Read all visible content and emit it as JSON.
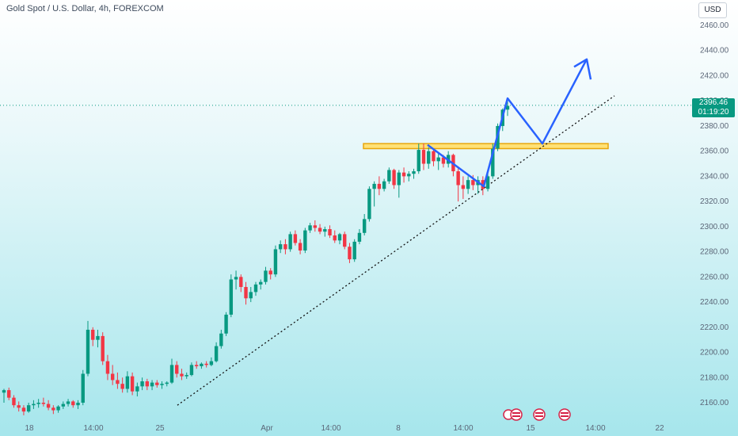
{
  "header": {
    "title": "Gold Spot / U.S. Dollar, 4h, FOREXCOM",
    "currency_button": "USD"
  },
  "price_tag": {
    "price": "2396.46",
    "countdown": "01:19:20"
  },
  "colors": {
    "up": "#089981",
    "down": "#f23645",
    "projection": "#2962ff",
    "zone_fill": "#ffe176",
    "zone_border": "#e8a60c"
  },
  "chart_data": {
    "type": "candlestick",
    "title": "Gold Spot / U.S. Dollar, 4h, FOREXCOM",
    "ylim": [
      2150,
      2470
    ],
    "y_ticks": [
      2160,
      2180,
      2200,
      2220,
      2240,
      2260,
      2280,
      2300,
      2320,
      2340,
      2360,
      2380,
      2400,
      2420,
      2440,
      2460
    ],
    "y_tick_labels": [
      "2160.00",
      "2180.00",
      "2200.00",
      "2220.00",
      "2240.00",
      "2260.00",
      "2280.00",
      "2300.00",
      "2320.00",
      "2340.00",
      "2360.00",
      "2380.00",
      "2400.00",
      "2420.00",
      "2440.00",
      "2460.00"
    ],
    "x_tick_labels": [
      "18",
      "14:00",
      "25",
      "Apr",
      "14:00",
      "8",
      "14:00",
      "15",
      "14:00",
      "22"
    ],
    "last_price": 2396.46,
    "candles": [
      {
        "o": 2168,
        "h": 2171,
        "l": 2160,
        "c": 2170
      },
      {
        "o": 2170,
        "h": 2172,
        "l": 2162,
        "c": 2164
      },
      {
        "o": 2164,
        "h": 2166,
        "l": 2156,
        "c": 2158
      },
      {
        "o": 2158,
        "h": 2161,
        "l": 2153,
        "c": 2156
      },
      {
        "o": 2156,
        "h": 2158,
        "l": 2150,
        "c": 2153
      },
      {
        "o": 2153,
        "h": 2160,
        "l": 2152,
        "c": 2158
      },
      {
        "o": 2158,
        "h": 2162,
        "l": 2155,
        "c": 2159
      },
      {
        "o": 2159,
        "h": 2163,
        "l": 2156,
        "c": 2160
      },
      {
        "o": 2160,
        "h": 2164,
        "l": 2157,
        "c": 2159
      },
      {
        "o": 2159,
        "h": 2162,
        "l": 2154,
        "c": 2156
      },
      {
        "o": 2156,
        "h": 2158,
        "l": 2151,
        "c": 2154
      },
      {
        "o": 2154,
        "h": 2158,
        "l": 2152,
        "c": 2157
      },
      {
        "o": 2157,
        "h": 2161,
        "l": 2155,
        "c": 2159
      },
      {
        "o": 2159,
        "h": 2163,
        "l": 2157,
        "c": 2161
      },
      {
        "o": 2161,
        "h": 2162,
        "l": 2156,
        "c": 2158
      },
      {
        "o": 2158,
        "h": 2162,
        "l": 2155,
        "c": 2160
      },
      {
        "o": 2160,
        "h": 2186,
        "l": 2158,
        "c": 2183
      },
      {
        "o": 2183,
        "h": 2225,
        "l": 2181,
        "c": 2218
      },
      {
        "o": 2218,
        "h": 2220,
        "l": 2205,
        "c": 2210
      },
      {
        "o": 2210,
        "h": 2218,
        "l": 2204,
        "c": 2213
      },
      {
        "o": 2213,
        "h": 2216,
        "l": 2190,
        "c": 2193
      },
      {
        "o": 2193,
        "h": 2198,
        "l": 2178,
        "c": 2183
      },
      {
        "o": 2183,
        "h": 2190,
        "l": 2174,
        "c": 2178
      },
      {
        "o": 2178,
        "h": 2184,
        "l": 2171,
        "c": 2175
      },
      {
        "o": 2175,
        "h": 2180,
        "l": 2168,
        "c": 2171
      },
      {
        "o": 2171,
        "h": 2185,
        "l": 2168,
        "c": 2181
      },
      {
        "o": 2181,
        "h": 2184,
        "l": 2166,
        "c": 2169
      },
      {
        "o": 2169,
        "h": 2176,
        "l": 2165,
        "c": 2173
      },
      {
        "o": 2173,
        "h": 2180,
        "l": 2170,
        "c": 2177
      },
      {
        "o": 2177,
        "h": 2179,
        "l": 2170,
        "c": 2173
      },
      {
        "o": 2173,
        "h": 2178,
        "l": 2170,
        "c": 2176
      },
      {
        "o": 2176,
        "h": 2178,
        "l": 2172,
        "c": 2174
      },
      {
        "o": 2174,
        "h": 2177,
        "l": 2171,
        "c": 2175
      },
      {
        "o": 2175,
        "h": 2177,
        "l": 2173,
        "c": 2176
      },
      {
        "o": 2176,
        "h": 2195,
        "l": 2175,
        "c": 2190
      },
      {
        "o": 2190,
        "h": 2193,
        "l": 2180,
        "c": 2183
      },
      {
        "o": 2183,
        "h": 2187,
        "l": 2178,
        "c": 2181
      },
      {
        "o": 2181,
        "h": 2184,
        "l": 2179,
        "c": 2182
      },
      {
        "o": 2182,
        "h": 2192,
        "l": 2181,
        "c": 2190
      },
      {
        "o": 2190,
        "h": 2193,
        "l": 2187,
        "c": 2189
      },
      {
        "o": 2189,
        "h": 2192,
        "l": 2187,
        "c": 2191
      },
      {
        "o": 2191,
        "h": 2193,
        "l": 2188,
        "c": 2190
      },
      {
        "o": 2190,
        "h": 2196,
        "l": 2189,
        "c": 2193
      },
      {
        "o": 2193,
        "h": 2208,
        "l": 2192,
        "c": 2205
      },
      {
        "o": 2205,
        "h": 2218,
        "l": 2203,
        "c": 2215
      },
      {
        "o": 2215,
        "h": 2232,
        "l": 2213,
        "c": 2230
      },
      {
        "o": 2230,
        "h": 2262,
        "l": 2228,
        "c": 2258
      },
      {
        "o": 2258,
        "h": 2265,
        "l": 2250,
        "c": 2260
      },
      {
        "o": 2260,
        "h": 2262,
        "l": 2248,
        "c": 2252
      },
      {
        "o": 2252,
        "h": 2256,
        "l": 2238,
        "c": 2243
      },
      {
        "o": 2243,
        "h": 2252,
        "l": 2240,
        "c": 2248
      },
      {
        "o": 2248,
        "h": 2256,
        "l": 2245,
        "c": 2254
      },
      {
        "o": 2254,
        "h": 2258,
        "l": 2250,
        "c": 2256
      },
      {
        "o": 2256,
        "h": 2268,
        "l": 2254,
        "c": 2265
      },
      {
        "o": 2265,
        "h": 2267,
        "l": 2258,
        "c": 2262
      },
      {
        "o": 2262,
        "h": 2285,
        "l": 2260,
        "c": 2282
      },
      {
        "o": 2282,
        "h": 2289,
        "l": 2279,
        "c": 2286
      },
      {
        "o": 2286,
        "h": 2290,
        "l": 2278,
        "c": 2282
      },
      {
        "o": 2282,
        "h": 2296,
        "l": 2280,
        "c": 2294
      },
      {
        "o": 2294,
        "h": 2297,
        "l": 2285,
        "c": 2287
      },
      {
        "o": 2287,
        "h": 2290,
        "l": 2278,
        "c": 2281
      },
      {
        "o": 2281,
        "h": 2299,
        "l": 2279,
        "c": 2297
      },
      {
        "o": 2297,
        "h": 2303,
        "l": 2295,
        "c": 2301
      },
      {
        "o": 2301,
        "h": 2305,
        "l": 2296,
        "c": 2299
      },
      {
        "o": 2299,
        "h": 2302,
        "l": 2294,
        "c": 2296
      },
      {
        "o": 2296,
        "h": 2300,
        "l": 2292,
        "c": 2298
      },
      {
        "o": 2298,
        "h": 2301,
        "l": 2291,
        "c": 2293
      },
      {
        "o": 2293,
        "h": 2297,
        "l": 2287,
        "c": 2289
      },
      {
        "o": 2289,
        "h": 2295,
        "l": 2286,
        "c": 2294
      },
      {
        "o": 2294,
        "h": 2296,
        "l": 2282,
        "c": 2284
      },
      {
        "o": 2284,
        "h": 2287,
        "l": 2271,
        "c": 2274
      },
      {
        "o": 2274,
        "h": 2290,
        "l": 2272,
        "c": 2288
      },
      {
        "o": 2288,
        "h": 2298,
        "l": 2286,
        "c": 2295
      },
      {
        "o": 2295,
        "h": 2310,
        "l": 2293,
        "c": 2306
      },
      {
        "o": 2306,
        "h": 2332,
        "l": 2304,
        "c": 2330
      },
      {
        "o": 2330,
        "h": 2336,
        "l": 2316,
        "c": 2334
      },
      {
        "o": 2334,
        "h": 2340,
        "l": 2325,
        "c": 2330
      },
      {
        "o": 2330,
        "h": 2338,
        "l": 2328,
        "c": 2336
      },
      {
        "o": 2336,
        "h": 2347,
        "l": 2334,
        "c": 2345
      },
      {
        "o": 2345,
        "h": 2346,
        "l": 2330,
        "c": 2333
      },
      {
        "o": 2333,
        "h": 2345,
        "l": 2323,
        "c": 2343
      },
      {
        "o": 2343,
        "h": 2347,
        "l": 2335,
        "c": 2340
      },
      {
        "o": 2340,
        "h": 2344,
        "l": 2336,
        "c": 2342
      },
      {
        "o": 2342,
        "h": 2346,
        "l": 2338,
        "c": 2344
      },
      {
        "o": 2344,
        "h": 2366,
        "l": 2342,
        "c": 2361
      },
      {
        "o": 2361,
        "h": 2366,
        "l": 2345,
        "c": 2350
      },
      {
        "o": 2350,
        "h": 2363,
        "l": 2346,
        "c": 2360
      },
      {
        "o": 2360,
        "h": 2362,
        "l": 2348,
        "c": 2352
      },
      {
        "o": 2352,
        "h": 2358,
        "l": 2345,
        "c": 2355
      },
      {
        "o": 2355,
        "h": 2357,
        "l": 2347,
        "c": 2350
      },
      {
        "o": 2350,
        "h": 2360,
        "l": 2347,
        "c": 2357
      },
      {
        "o": 2357,
        "h": 2358,
        "l": 2340,
        "c": 2344
      },
      {
        "o": 2344,
        "h": 2347,
        "l": 2320,
        "c": 2333
      },
      {
        "o": 2333,
        "h": 2340,
        "l": 2322,
        "c": 2330
      },
      {
        "o": 2330,
        "h": 2340,
        "l": 2326,
        "c": 2337
      },
      {
        "o": 2337,
        "h": 2341,
        "l": 2329,
        "c": 2333
      },
      {
        "o": 2333,
        "h": 2340,
        "l": 2326,
        "c": 2337
      },
      {
        "o": 2337,
        "h": 2340,
        "l": 2325,
        "c": 2330
      },
      {
        "o": 2330,
        "h": 2343,
        "l": 2328,
        "c": 2340
      },
      {
        "o": 2340,
        "h": 2366,
        "l": 2338,
        "c": 2362
      },
      {
        "o": 2362,
        "h": 2382,
        "l": 2360,
        "c": 2380
      },
      {
        "o": 2380,
        "h": 2394,
        "l": 2376,
        "c": 2393
      },
      {
        "o": 2393,
        "h": 2401,
        "l": 2388,
        "c": 2396
      }
    ]
  }
}
